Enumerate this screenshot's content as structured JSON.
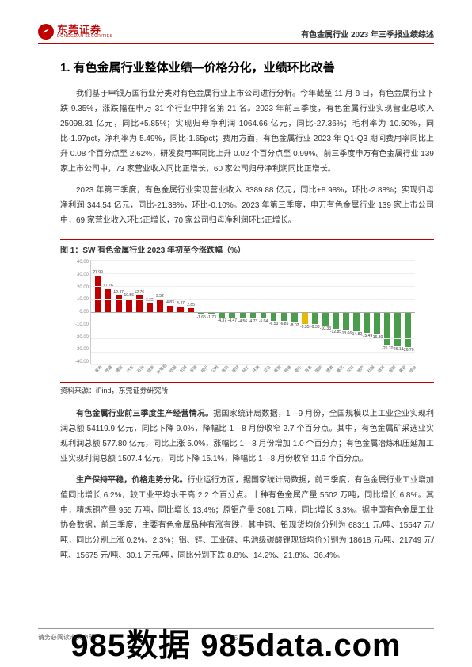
{
  "header": {
    "logo_text": "东莞证券",
    "logo_sub": "DONGGUAN SECURITIES",
    "right": "有色金属行业 2023 年三季报业绩综述"
  },
  "title": "1.  有色金属行业整体业绩—价格分化，业绩环比改善",
  "paragraphs": {
    "p1": "我们基于申银万国行业分类对有色金属行业上市公司进行分析。今年截至 11 月 8 日，有色金属行业下跌 9.35%，涨跌幅在申万 31 个行业中排名第 21 名。2023 年前三季度，有色金属行业实现营业总收入 25098.31 亿元，同比+5.85%；实现归母净利润 1064.66 亿元，同比-27.36%；毛利率为 10.50%，同比-1.97pct，净利率为 5.49%，同比-1.65pct；费用方面，有色金属行业 2023 年 Q1-Q3 期间费用率同比上升 0.08 个百分点至 2.62%，研发费用率同比上升 0.02 个百分点至 0.99%。前三季度申万有色金属行业 139 家上市公司中，73 家营业收入同比正增长，60 家公司归母净利润同比正增长。",
    "p2": "2023 年第三季度，有色金属行业实现营业收入 8389.88 亿元，同比+8.98%，环比-2.88%；实现归母净利润 344.54 亿元，同比-21.38%，环比-0.10%。2023 年第三季度，申万有色金属行业 139 家上市公司中，69 家营业收入环比正增长，70 家公司归母净利润环比正增长。",
    "p3_lead": "有色金属行业前三季度生产经营情况。",
    "p3": "据国家统计局数据，1—9 月份，全国规模以上工业企业实现利润总额 54119.9 亿元，同比下降 9.0%，降幅比 1—8 月份收窄 2.7 个百分点。其中，有色金属矿采选业实现利润总额 577.80 亿元，同比上涨 5.0%，涨幅比 1—8 月份增加 1.0 个百分点；有色金属冶炼和压延加工业实现利润总额 1507.4 亿元，同比下降 15.1%，降幅比 1—8 月份收窄 11.9 个百分点。",
    "p4_lead": "生产保持平稳，价格走势分化。",
    "p4": "行业运行方面，据国家统计局数据，前三季度，有色金属行业工业增加值同比增长 6.2%，较工业平均水平高 2.2 个百分点。十种有色金属产量 5502 万吨，同比增长 6.8%。其中，精炼铜产量 955 万吨，同比增长 13.4%；原铝产量 3081 万吨，同比增长 3.3%。据中国有色金属工业协会数据，前三季度，主要有色金属品种有涨有跌，其中铜、铅现货均价分别为 68311 元/吨、15547 元/吨，同比分别上涨 0.2%、2.3%；铝、锌、工业硅、电池级碳酸锂现货均价分别为 18618 元/吨、21749 元/吨、15675 元/吨、30.1 万元/吨，同比分别下跌 8.8%、14.2%、21.8%、36.4%。"
  },
  "figure": {
    "title": "图 1：SW 有色金属行业 2023 年初至今涨跌幅（%）",
    "source": "资料来源：iFind，东莞证券研究所",
    "ymin": -40,
    "ymax": 40,
    "ystep": 10,
    "yticks": [
      "40.00",
      "30.00",
      "20.00",
      "10.00",
      "0.00",
      "-10.00",
      "-20.00",
      "-30.00",
      "-40.00"
    ],
    "hl_color": "#e6b800",
    "pos_color": "#c00000",
    "neg_color": "#4a9d4a",
    "bars": [
      {
        "v": 27.99,
        "c": "pos",
        "x": "家电"
      },
      {
        "v": 17.76,
        "c": "pos",
        "x": "传媒"
      },
      {
        "v": 12.47,
        "c": "pos",
        "x": "通信"
      },
      {
        "v": 10.56,
        "c": "pos",
        "x": "汽车"
      },
      {
        "v": 12.76,
        "c": "pos",
        "x": "石化"
      },
      {
        "v": 6.9,
        "c": "pos",
        "x": "煤炭"
      },
      {
        "v": 9.52,
        "c": "pos",
        "x": "计算机"
      },
      {
        "v": 4.83,
        "c": "pos",
        "x": "纺服"
      },
      {
        "v": 4.47,
        "c": "pos",
        "x": "机械"
      },
      {
        "v": 2.85,
        "c": "pos",
        "x": "非银"
      },
      {
        "v": -1.65,
        "c": "neg",
        "x": "银行"
      },
      {
        "v": -1.73,
        "c": "neg",
        "x": "公用"
      },
      {
        "v": -4.37,
        "c": "neg",
        "x": "医药"
      },
      {
        "v": -4.47,
        "c": "neg",
        "x": "建材"
      },
      {
        "v": -4.56,
        "c": "neg",
        "x": "轻工"
      },
      {
        "v": -4.73,
        "c": "neg",
        "x": "环保"
      },
      {
        "v": -5.04,
        "c": "neg",
        "x": "交运"
      },
      {
        "v": -6.53,
        "c": "neg",
        "x": "食饮"
      },
      {
        "v": -6.85,
        "c": "neg",
        "x": "钢铁"
      },
      {
        "v": -8.02,
        "c": "neg",
        "x": "电子"
      },
      {
        "v": -9.35,
        "c": "hl",
        "x": "有色"
      },
      {
        "v": -9.38,
        "c": "neg",
        "x": "国防"
      },
      {
        "v": -10.33,
        "c": "neg",
        "x": "建筑"
      },
      {
        "v": -12.85,
        "c": "neg",
        "x": "基化"
      },
      {
        "v": -13.66,
        "c": "neg",
        "x": "农林"
      },
      {
        "v": -14.82,
        "c": "neg",
        "x": "地产"
      },
      {
        "v": -15.49,
        "c": "neg",
        "x": "社服"
      },
      {
        "v": -16.8,
        "c": "neg",
        "x": "商贸"
      },
      {
        "v": -25.7,
        "c": "neg",
        "x": "电新"
      },
      {
        "v": -26.13,
        "c": "neg",
        "x": "美容"
      },
      {
        "v": -26.7,
        "c": "neg",
        "x": "综合"
      }
    ]
  },
  "footer": {
    "disclaimer": "请务必阅读末页声明。",
    "page": "5"
  },
  "watermark": "985数据 985data.com"
}
